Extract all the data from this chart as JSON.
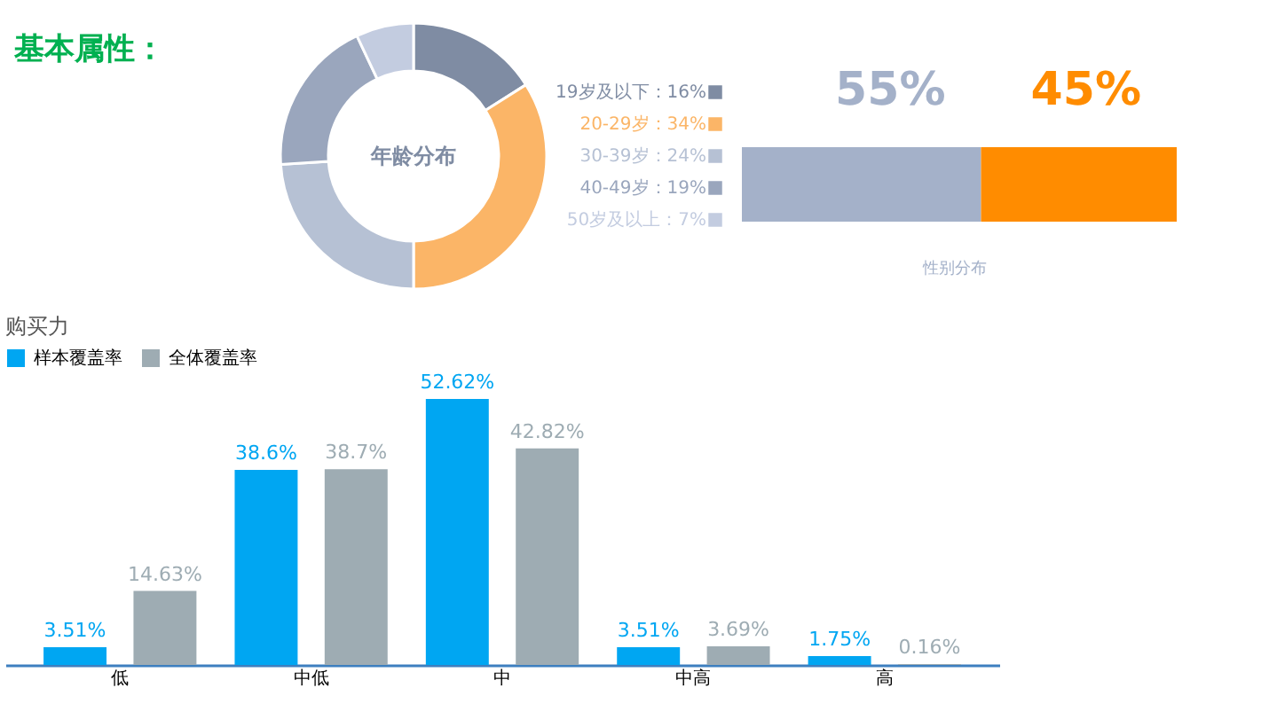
{
  "chart_data": [
    {
      "type": "donut",
      "title": "年龄分布",
      "annotations": [
        "基本属性："
      ],
      "legend": "right",
      "categories": [
        "19岁及以下",
        "20-29岁",
        "30-39岁",
        "40-49岁",
        "50岁及以上"
      ],
      "values": [
        16,
        34,
        24,
        19,
        7
      ],
      "value_labels": [
        "16%",
        "34%",
        "24%",
        "19%",
        "7%"
      ],
      "colors": [
        "#7f8ca3",
        "#fbb567",
        "#b6c1d4",
        "#9aa6bd",
        "#c3cce0"
      ]
    },
    {
      "type": "other",
      "title": "性别分布",
      "categories": [
        null,
        null
      ],
      "values": [
        55,
        45
      ],
      "value_labels": [
        "55%",
        "45%"
      ],
      "colors": [
        "#a4b1c9",
        "#ff8c00"
      ]
    },
    {
      "type": "bar",
      "title": "购买力",
      "legend": "top",
      "grid": false,
      "categories": [
        "低",
        "中低",
        "中",
        "中高",
        "高"
      ],
      "series": [
        {
          "name": "样本覆盖率",
          "color": "#00a6f2",
          "values": [
            3.51,
            38.6,
            52.62,
            3.51,
            1.75
          ],
          "value_labels": [
            "3.51%",
            "38.6%",
            "52.62%",
            "3.51%",
            "1.75%"
          ]
        },
        {
          "name": "全体覆盖率",
          "color": "#9eacb3",
          "values": [
            14.63,
            38.7,
            42.82,
            3.69,
            0.16
          ],
          "value_labels": [
            "14.63%",
            "38.7%",
            "42.82%",
            "3.69%",
            "0.16%"
          ]
        }
      ]
    }
  ]
}
